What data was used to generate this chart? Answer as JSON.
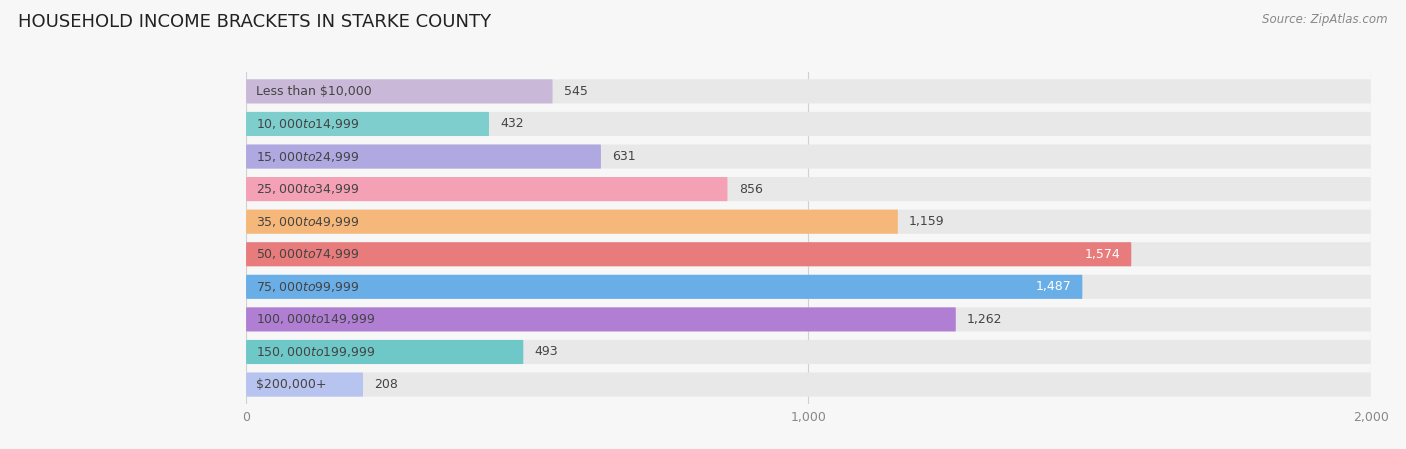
{
  "title": "HOUSEHOLD INCOME BRACKETS IN STARKE COUNTY",
  "source": "Source: ZipAtlas.com",
  "categories": [
    "Less than $10,000",
    "$10,000 to $14,999",
    "$15,000 to $24,999",
    "$25,000 to $34,999",
    "$35,000 to $49,999",
    "$50,000 to $74,999",
    "$75,000 to $99,999",
    "$100,000 to $149,999",
    "$150,000 to $199,999",
    "$200,000+"
  ],
  "values": [
    545,
    432,
    631,
    856,
    1159,
    1574,
    1487,
    1262,
    493,
    208
  ],
  "colors": [
    "#c9b8d8",
    "#7ecece",
    "#b0a8e0",
    "#f4a0b5",
    "#f5b87a",
    "#e87b7b",
    "#6aaee8",
    "#b07fd4",
    "#6ec8c8",
    "#b8c4f0"
  ],
  "xlim": [
    0,
    2000
  ],
  "background_color": "#f7f7f7",
  "bar_bg_color": "#e8e8e8",
  "title_fontsize": 13,
  "label_fontsize": 9,
  "value_fontsize": 9,
  "source_fontsize": 8.5,
  "xtick_fontsize": 9,
  "white_label_threshold": 1450,
  "bar_height": 0.74,
  "grid_color": "#d0d0d0",
  "grid_linewidth": 0.8,
  "label_color": "#444444",
  "source_color": "#888888",
  "title_color": "#222222",
  "xtick_color": "#888888"
}
